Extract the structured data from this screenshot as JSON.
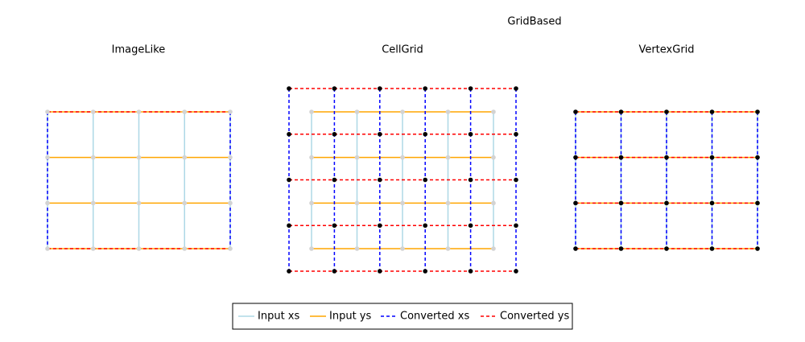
{
  "header": {
    "title": "GridBased"
  },
  "panels": [
    {
      "title": "ImageLike"
    },
    {
      "title": "CellGrid"
    },
    {
      "title": "VertexGrid"
    }
  ],
  "legend": {
    "items": [
      {
        "label": "Input xs"
      },
      {
        "label": "Input ys"
      },
      {
        "label": "Converted xs"
      },
      {
        "label": "Converted ys"
      }
    ]
  }
}
